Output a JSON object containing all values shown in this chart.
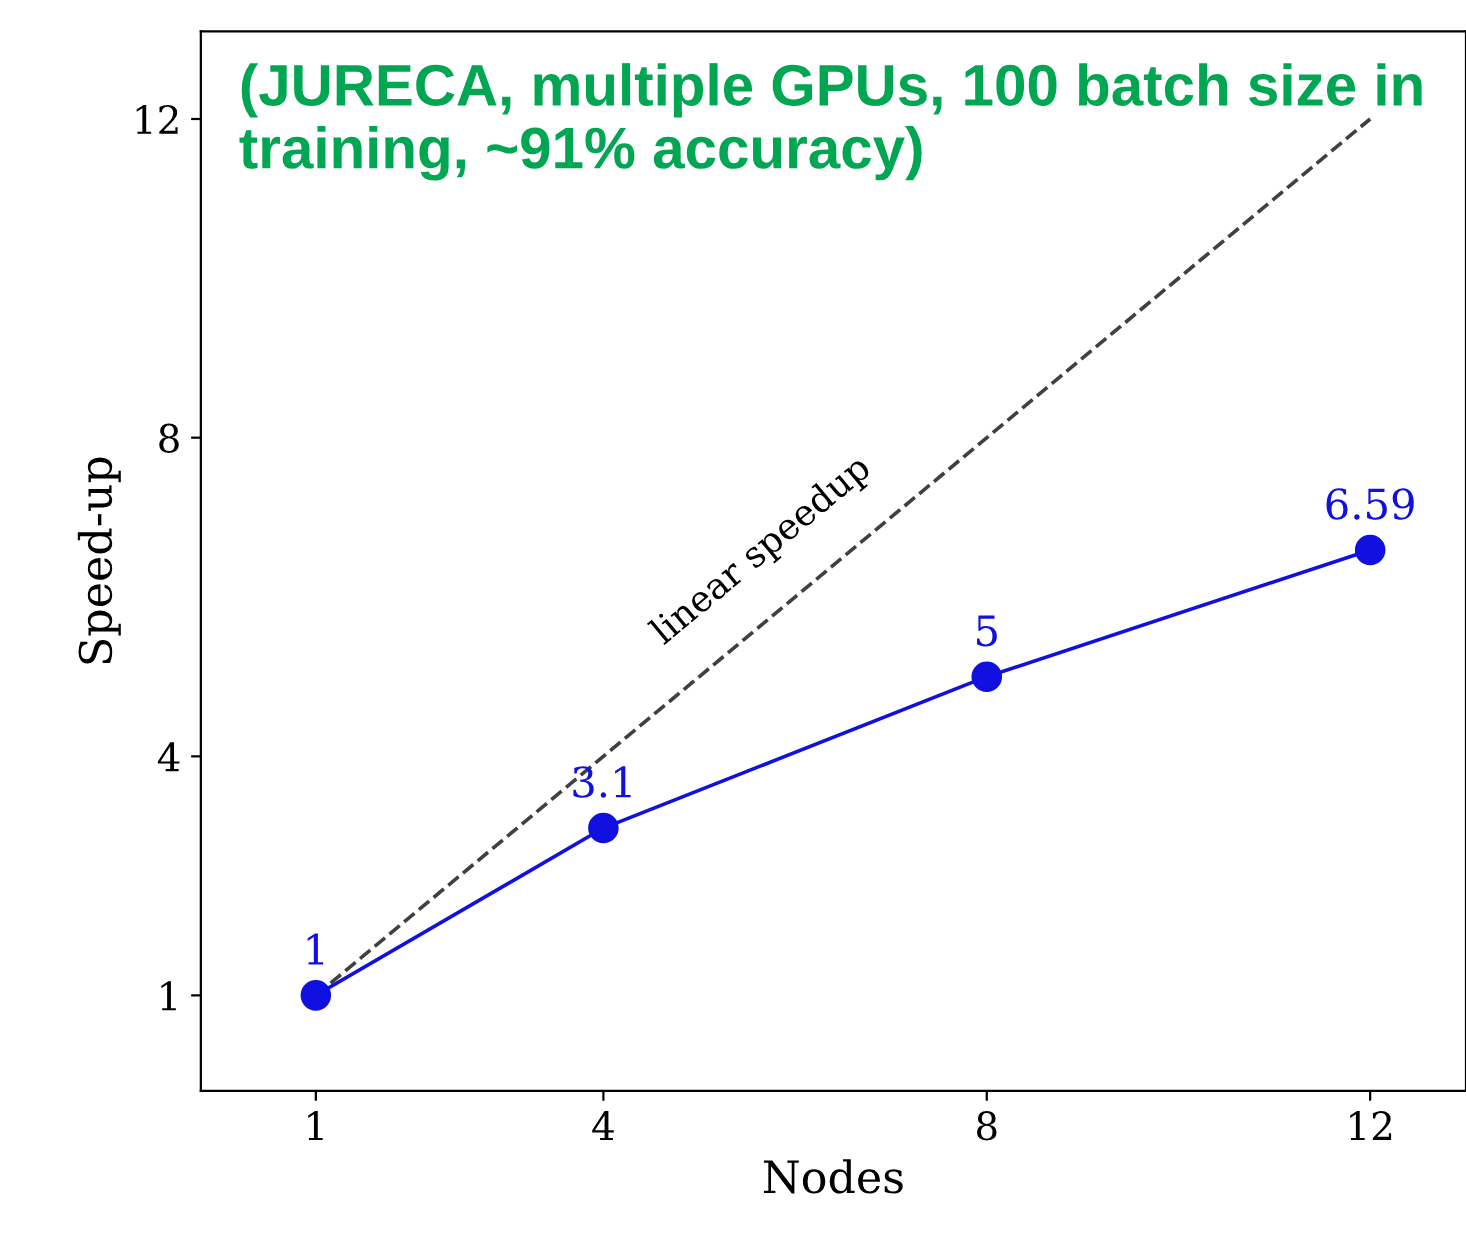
{
  "chart_data": {
    "type": "line",
    "xlabel": "Nodes",
    "ylabel": "Speed-up",
    "x": [
      1,
      4,
      8,
      12
    ],
    "series": [
      {
        "name": "linear speedup",
        "color": "#404040",
        "x": [
          1,
          12
        ],
        "values": [
          1,
          12
        ],
        "line_style": "dashed",
        "marker": "none"
      },
      {
        "color": "#1010e0",
        "values": [
          1,
          3.1,
          5,
          6.59
        ],
        "marker": "circle",
        "line_style": "solid",
        "data_labels": true
      }
    ],
    "xlim": [
      -0.2,
      13
    ],
    "ylim": [
      -0.2,
      13.1
    ],
    "xticks": [
      1,
      4,
      8,
      12
    ],
    "yticks": [
      1,
      4,
      8,
      12
    ],
    "annotations": [
      "(JURECA, multiple GPUs, 100 batch size in training, ~91% accuracy)"
    ],
    "grid": false,
    "legend": false
  }
}
